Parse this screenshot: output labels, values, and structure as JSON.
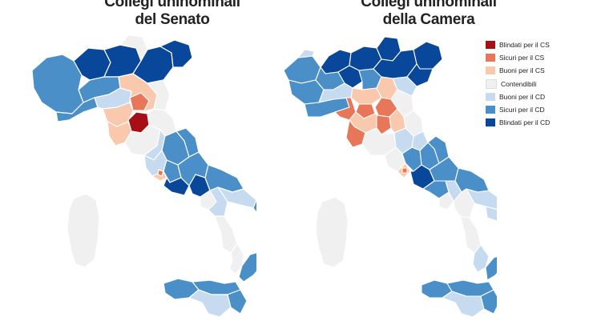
{
  "titles": {
    "senate": "Collegi uninominali\ndel Senato",
    "camera": "Collegi uninominali\ndella Camera"
  },
  "legend": [
    {
      "label": "Blindati per il CS",
      "color": "#a50f15"
    },
    {
      "label": "Sicuri per il CS",
      "color": "#e8775a"
    },
    {
      "label": "Buoni per il CS",
      "color": "#f9c8ad"
    },
    {
      "label": "Contendibili",
      "color": "#f0f0f0"
    },
    {
      "label": "Buoni per il CD",
      "color": "#c6dbef"
    },
    {
      "label": "Sicuri per il CD",
      "color": "#4a8fc7"
    },
    {
      "label": "Blindati per il CD",
      "color": "#08479a"
    }
  ],
  "colors": {
    "background": "#ffffff",
    "border": "#ffffff"
  }
}
